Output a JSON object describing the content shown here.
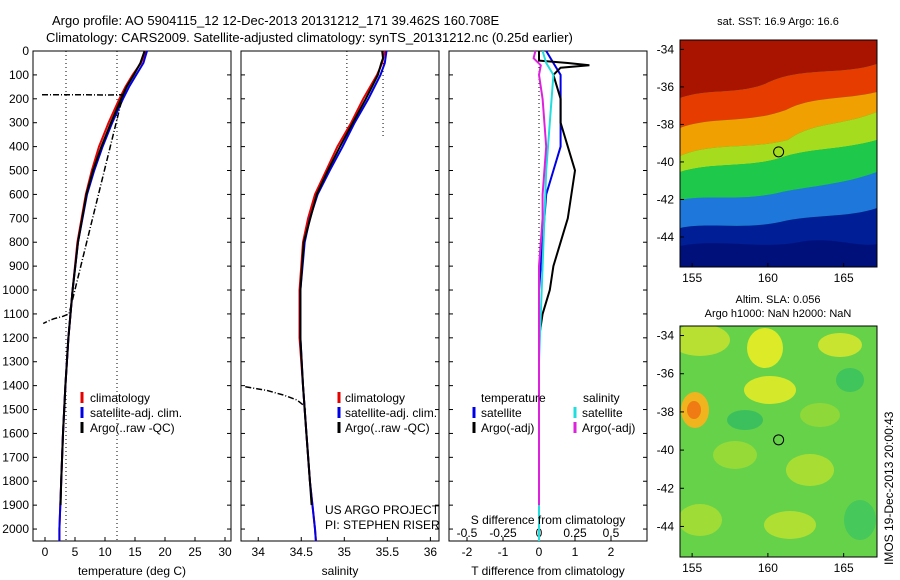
{
  "header": {
    "line1": "Argo profile: AO 5904115_12 12-Dec-2013 20131212_171 39.462S 160.708E",
    "line2": "Climatology: CARS2009. Satellite-adjusted climatology: synTS_20131212.nc (0.25d earlier)"
  },
  "credit": "IMOS 19-Dec-2013 20:00:43",
  "colors": {
    "climatology": "#e60000",
    "satellite": "#0000e6",
    "argo": "#000000",
    "sal_satellite": "#22dddd",
    "sal_argo": "#dd22dd"
  },
  "chart_data": [
    {
      "type": "line",
      "id": "temperature",
      "xlabel": "temperature (deg C)",
      "xlim": [
        -2,
        31
      ],
      "ylim": [
        2050,
        0
      ],
      "xticks": [
        0,
        5,
        10,
        15,
        20,
        25,
        30
      ],
      "yticks": [
        0,
        100,
        200,
        300,
        400,
        500,
        600,
        700,
        800,
        900,
        1000,
        1100,
        1200,
        1300,
        1400,
        1500,
        1600,
        1700,
        1800,
        1900,
        2000
      ],
      "legend": [
        "climatology",
        "satellite-adj. clim.",
        "Argo(..raw -QC)"
      ],
      "series": [
        {
          "name": "climatology",
          "color": "#e60000",
          "depth": [
            0,
            50,
            100,
            150,
            200,
            300,
            400,
            500,
            600,
            800,
            1000,
            1200,
            1400,
            1600,
            1800,
            2000,
            2050
          ],
          "value": [
            16.8,
            16.0,
            14.6,
            13.4,
            12.4,
            10.6,
            9.0,
            7.8,
            6.8,
            5.4,
            4.6,
            3.9,
            3.4,
            3.0,
            2.7,
            2.4,
            2.4
          ]
        },
        {
          "name": "satellite-adj. clim.",
          "color": "#0000e6",
          "depth": [
            0,
            50,
            100,
            150,
            200,
            300,
            400,
            500,
            600,
            800,
            1000,
            1200,
            1400,
            1600,
            1800,
            2000,
            2050
          ],
          "value": [
            17.0,
            16.4,
            15.2,
            14.0,
            13.0,
            11.2,
            9.6,
            8.2,
            7.0,
            5.5,
            4.6,
            3.9,
            3.4,
            3.0,
            2.7,
            2.4,
            2.4
          ]
        },
        {
          "name": "Argo(..raw -QC)",
          "color": "#000000",
          "depth": [
            0,
            50,
            100,
            150,
            200,
            300,
            400,
            500,
            600,
            800,
            1000,
            1200,
            1400,
            1600,
            1800,
            1900
          ],
          "value": [
            16.6,
            15.9,
            14.8,
            13.6,
            12.7,
            11.0,
            9.4,
            8.0,
            6.9,
            5.5,
            4.6,
            3.9,
            3.4,
            3.0,
            2.7,
            2.6
          ]
        }
      ],
      "qc_trace": {
        "depth": [
          183,
          183,
          184,
          183,
          184,
          1100,
          1110,
          1120,
          1130,
          1140
        ],
        "value": [
          -0.5,
          5,
          10,
          12.5,
          13,
          4,
          3,
          1.5,
          0.5,
          -0.3
        ]
      },
      "dotted_refs": [
        3.5,
        12
      ]
    },
    {
      "type": "line",
      "id": "salinity",
      "xlabel": "salinity",
      "xlim": [
        33.8,
        36.1
      ],
      "ylim": [
        2050,
        0
      ],
      "xticks": [
        34,
        34.5,
        35,
        35.5,
        36
      ],
      "legend": [
        "climatology",
        "satellite-adj. clim.",
        "Argo(..raw -QC)"
      ],
      "series": [
        {
          "name": "climatology",
          "color": "#e60000",
          "depth": [
            0,
            50,
            100,
            150,
            200,
            300,
            400,
            500,
            600,
            700,
            800,
            1000,
            1200,
            1400,
            1600,
            1800,
            2000,
            2050
          ],
          "value": [
            35.47,
            35.44,
            35.38,
            35.3,
            35.22,
            35.08,
            34.92,
            34.79,
            34.66,
            34.58,
            34.52,
            34.48,
            34.48,
            34.52,
            34.56,
            34.6,
            34.66,
            34.67
          ]
        },
        {
          "name": "satellite-adj. clim.",
          "color": "#0000e6",
          "depth": [
            0,
            50,
            100,
            150,
            200,
            300,
            400,
            500,
            600,
            700,
            800,
            1000,
            1200,
            1400,
            1600,
            1800,
            2000,
            2050
          ],
          "value": [
            35.49,
            35.47,
            35.42,
            35.35,
            35.28,
            35.12,
            34.98,
            34.83,
            34.69,
            34.6,
            34.54,
            34.49,
            34.49,
            34.52,
            34.56,
            34.6,
            34.66,
            34.67
          ]
        },
        {
          "name": "Argo(..raw -QC)",
          "color": "#000000",
          "depth": [
            0,
            30,
            50,
            100,
            150,
            200,
            300,
            400,
            500,
            600,
            800,
            1000,
            1200,
            1400,
            1600,
            1800,
            1900
          ],
          "value": [
            35.44,
            35.45,
            35.43,
            35.39,
            35.32,
            35.25,
            35.1,
            34.95,
            34.81,
            34.68,
            34.53,
            34.49,
            34.49,
            34.52,
            34.56,
            34.6,
            34.62
          ]
        }
      ],
      "qc_trace": {
        "depth": [
          1405,
          1420,
          1440,
          1460,
          1480,
          1500
        ],
        "value": [
          33.85,
          34.1,
          34.3,
          34.45,
          34.52,
          34.55
        ]
      },
      "dotted_refs": [
        35.03,
        35.45
      ]
    },
    {
      "type": "line",
      "id": "difference",
      "xlabel": "T difference from climatology",
      "xlabel2": "S difference from climatology",
      "xlim": [
        -2.5,
        3.0
      ],
      "ylim": [
        2050,
        0
      ],
      "xticks": [
        -2,
        -1,
        0,
        1,
        2
      ],
      "xticks2_labels": [
        "-0.5",
        "-0.25",
        "0",
        "0.25",
        "0.5"
      ],
      "xticks2_pos": [
        -2,
        -1,
        0,
        1,
        2
      ],
      "legend_title_left": "temperature",
      "legend_title_right": "salinity",
      "legend_left": [
        "satellite",
        "Argo(-adj)"
      ],
      "legend_right": [
        "satellite",
        "Argo(-adj)"
      ],
      "series": [
        {
          "name": "satellite",
          "color": "#0000e6",
          "depth": [
            0,
            50,
            100,
            150,
            200,
            300,
            400,
            500,
            600,
            800,
            1000,
            1200,
            1400,
            1600,
            1800,
            2000,
            2050
          ],
          "value": [
            0.2,
            0.4,
            0.6,
            0.6,
            0.6,
            0.6,
            0.6,
            0.4,
            0.2,
            0.1,
            0.0,
            0.0,
            0.0,
            0.0,
            0.0,
            0.0,
            0.0
          ]
        },
        {
          "name": "Argo(-adj)",
          "color": "#000000",
          "depth": [
            0,
            40,
            50,
            60,
            70,
            100,
            200,
            300,
            400,
            500,
            600,
            700,
            800,
            900,
            1000,
            1100,
            1200,
            1300,
            1400,
            1500,
            1600,
            1700,
            1800,
            1900
          ],
          "value": [
            0.0,
            0.0,
            0.8,
            1.4,
            0.6,
            0.4,
            0.6,
            0.6,
            0.8,
            1.0,
            0.9,
            0.8,
            0.6,
            0.4,
            0.3,
            0.1,
            0.0,
            0.0,
            0.0,
            0.0,
            0.0,
            0.0,
            0.0,
            0.0
          ]
        },
        {
          "name": "satellite",
          "color": "#22dddd",
          "depth": [
            0,
            50,
            100,
            200,
            300,
            400,
            500,
            700,
            900,
            1100,
            1300,
            1500,
            1700,
            1900,
            2050
          ],
          "value": [
            0.1,
            0.2,
            0.4,
            0.35,
            0.3,
            0.25,
            0.2,
            0.15,
            0.1,
            0.05,
            0.0,
            0.0,
            0.0,
            0.0,
            0.0
          ]
        },
        {
          "name": "Argo(-adj)",
          "color": "#dd22dd",
          "depth": [
            0,
            30,
            60,
            100,
            200,
            300,
            400,
            500,
            600,
            700,
            800,
            900,
            1000,
            1100,
            1200,
            1300,
            1400,
            1500,
            1600,
            1700,
            1800,
            1900
          ],
          "value": [
            -0.1,
            -0.15,
            0.05,
            0.0,
            0.1,
            0.15,
            0.2,
            0.15,
            0.1,
            0.1,
            0.05,
            0.0,
            0.0,
            0.0,
            0.0,
            0.0,
            0.0,
            0.0,
            0.0,
            0.0,
            0.0,
            0.0
          ]
        }
      ]
    },
    {
      "type": "heatmap",
      "id": "sst-map",
      "title": "sat. SST: 16.9 Argo: 16.6",
      "xticks": [
        155,
        160,
        165
      ],
      "yticks": [
        -34,
        -36,
        -38,
        -40,
        -42,
        -44
      ],
      "xlim": [
        154.2,
        167.2
      ],
      "ylim": [
        -45.6,
        -33.5
      ],
      "marker": [
        160.708,
        -39.462
      ]
    },
    {
      "type": "heatmap",
      "id": "sla-map",
      "title": "Altim. SLA: 0.056",
      "subtitle": "Argo h1000: NaN h2000: NaN",
      "xticks": [
        155,
        160,
        165
      ],
      "yticks": [
        -34,
        -36,
        -38,
        -40,
        -42,
        -44
      ],
      "xlim": [
        154.2,
        167.2
      ],
      "ylim": [
        -45.6,
        -33.5
      ],
      "marker": [
        160.708,
        -39.462
      ]
    }
  ]
}
